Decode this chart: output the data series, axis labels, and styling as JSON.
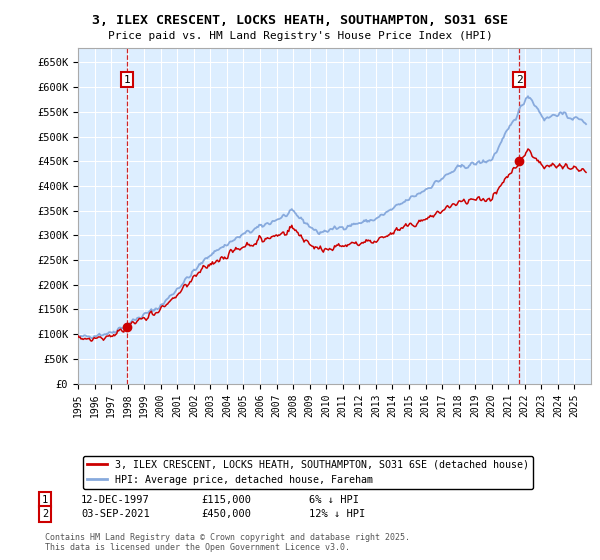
{
  "title_line1": "3, ILEX CRESCENT, LOCKS HEATH, SOUTHAMPTON, SO31 6SE",
  "title_line2": "Price paid vs. HM Land Registry's House Price Index (HPI)",
  "ylim": [
    0,
    680000
  ],
  "yticks": [
    0,
    50000,
    100000,
    150000,
    200000,
    250000,
    300000,
    350000,
    400000,
    450000,
    500000,
    550000,
    600000,
    650000
  ],
  "ytick_labels": [
    "£0",
    "£50K",
    "£100K",
    "£150K",
    "£200K",
    "£250K",
    "£300K",
    "£350K",
    "£400K",
    "£450K",
    "£500K",
    "£550K",
    "£600K",
    "£650K"
  ],
  "xlim_start": 1995.0,
  "xlim_end": 2026.0,
  "sale1_x": 1997.95,
  "sale1_y": 115000,
  "sale2_x": 2021.67,
  "sale2_y": 450000,
  "line_color_property": "#cc0000",
  "line_color_hpi": "#88aadd",
  "background_color": "#ddeeff",
  "annotation_box_color": "#cc0000",
  "legend_label_property": "3, ILEX CRESCENT, LOCKS HEATH, SOUTHAMPTON, SO31 6SE (detached house)",
  "legend_label_hpi": "HPI: Average price, detached house, Fareham",
  "footnote1": "Contains HM Land Registry data © Crown copyright and database right 2025.",
  "footnote2": "This data is licensed under the Open Government Licence v3.0.",
  "sale1_date": "12-DEC-1997",
  "sale1_price_str": "£115,000",
  "sale1_pct": "6% ↓ HPI",
  "sale2_date": "03-SEP-2021",
  "sale2_price_str": "£450,000",
  "sale2_pct": "12% ↓ HPI"
}
